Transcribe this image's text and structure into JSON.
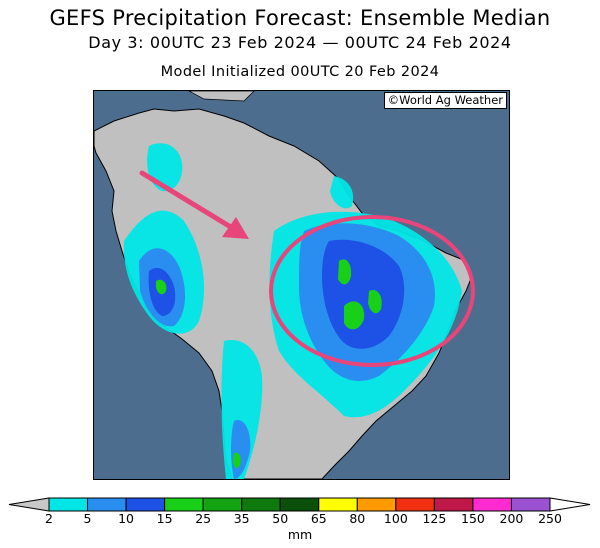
{
  "title": "GEFS Precipitation Forecast: Ensemble Median",
  "subtitle": "Day 3: 00UTC 23 Feb 2024 — 00UTC 24 Feb 2024",
  "init_line": "Model Initialized 00UTC 20 Feb 2024",
  "credit": "©World Ag Weather",
  "units": "mm",
  "colors": {
    "ocean": "#4d6d8e",
    "land": "#c0c0c0",
    "annotation": "#e8457a"
  },
  "legend": {
    "bins": [
      {
        "label": "2",
        "color": "#00e6e6"
      },
      {
        "label": "5",
        "color": "#2a8ef0"
      },
      {
        "label": "10",
        "color": "#1e52e6"
      },
      {
        "label": "15",
        "color": "#18d018"
      },
      {
        "label": "25",
        "color": "#13a313"
      },
      {
        "label": "35",
        "color": "#0e7a0e"
      },
      {
        "label": "50",
        "color": "#0a4f0a"
      },
      {
        "label": "65",
        "color": "#ffff00"
      },
      {
        "label": "80",
        "color": "#ff9a00"
      },
      {
        "label": "100",
        "color": "#f03010"
      },
      {
        "label": "125",
        "color": "#c01848"
      },
      {
        "label": "150",
        "color": "#ff2ad0"
      },
      {
        "label": "200",
        "color": "#9a52d2"
      }
    ],
    "last_label": "250"
  }
}
